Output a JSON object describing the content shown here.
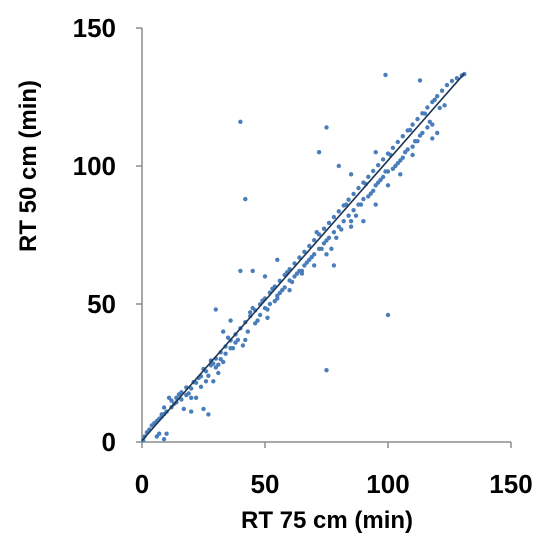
{
  "chart_data": {
    "type": "scatter",
    "title": "",
    "xlabel": "RT 75 cm (min)",
    "ylabel": "RT 50 cm (min)",
    "xlim": [
      0,
      150
    ],
    "ylim": [
      0,
      150
    ],
    "x_ticks": [
      "0",
      "50",
      "100",
      "150"
    ],
    "y_ticks": [
      "0",
      "50",
      "100",
      "150"
    ],
    "grid": false,
    "legend": "none",
    "colors": {
      "points": "#4a7ebb",
      "fit_line": "#1f3552",
      "axis": "#8c8c8c"
    },
    "series": [
      {
        "values": [
          [
            0.5,
            0.6
          ],
          [
            1,
            2
          ],
          [
            2,
            3.5
          ],
          [
            3,
            4.5
          ],
          [
            4,
            6
          ],
          [
            5,
            6.8
          ],
          [
            6,
            7.6
          ],
          [
            7,
            8.4
          ],
          [
            8,
            9.2
          ],
          [
            9,
            10.1
          ],
          [
            10,
            11
          ],
          [
            12,
            12.6
          ],
          [
            14,
            14.4
          ],
          [
            16,
            15.4
          ],
          [
            18,
            17
          ],
          [
            20,
            19.4
          ],
          [
            22,
            21.5
          ],
          [
            24,
            23.8
          ],
          [
            26,
            25.6
          ],
          [
            28,
            27.8
          ],
          [
            30,
            30.2
          ],
          [
            32,
            32.5
          ],
          [
            34,
            34.6
          ],
          [
            36,
            36.8
          ],
          [
            38,
            39
          ],
          [
            40,
            41.2
          ],
          [
            42,
            43.4
          ],
          [
            44,
            45.6
          ],
          [
            46,
            47.7
          ],
          [
            48,
            49.9
          ],
          [
            50,
            52
          ],
          [
            52,
            54.1
          ],
          [
            54,
            56.3
          ],
          [
            56,
            58.4
          ],
          [
            58,
            60.5
          ],
          [
            60,
            62.6
          ],
          [
            62,
            64.7
          ],
          [
            64,
            66.8
          ],
          [
            66,
            68.9
          ],
          [
            68,
            71
          ],
          [
            70,
            73.1
          ],
          [
            72,
            75.2
          ],
          [
            74,
            77.3
          ],
          [
            76,
            79.4
          ],
          [
            78,
            81.5
          ],
          [
            80,
            83.6
          ],
          [
            82,
            85.7
          ],
          [
            84,
            87.8
          ],
          [
            86,
            89.9
          ],
          [
            88,
            92
          ],
          [
            90,
            94
          ],
          [
            92,
            96.1
          ],
          [
            94,
            98.2
          ],
          [
            96,
            100.3
          ],
          [
            98,
            102.4
          ],
          [
            100,
            104.5
          ],
          [
            102,
            106.6
          ],
          [
            104,
            108.7
          ],
          [
            106,
            110.8
          ],
          [
            108,
            112.9
          ],
          [
            110,
            115
          ],
          [
            112,
            117
          ],
          [
            114,
            119.1
          ],
          [
            116,
            121.2
          ],
          [
            118,
            123.2
          ],
          [
            120,
            125.3
          ],
          [
            122,
            127.3
          ],
          [
            124,
            129.3
          ],
          [
            126,
            130.8
          ],
          [
            128,
            131.8
          ],
          [
            130,
            132.8
          ],
          [
            131,
            133.3
          ],
          [
            11,
            16
          ],
          [
            13,
            13.8
          ],
          [
            15,
            17.2
          ],
          [
            19,
            17.6
          ],
          [
            21,
            21.7
          ],
          [
            23,
            23.2
          ],
          [
            25,
            26.5
          ],
          [
            27,
            24
          ],
          [
            29,
            28.4
          ],
          [
            31,
            25
          ],
          [
            33,
            29
          ],
          [
            35,
            37.8
          ],
          [
            37,
            34
          ],
          [
            39,
            37
          ],
          [
            41,
            35
          ],
          [
            43,
            40
          ],
          [
            45,
            48.5
          ],
          [
            47,
            44
          ],
          [
            49,
            51.2
          ],
          [
            51,
            48
          ],
          [
            53,
            55.5
          ],
          [
            55,
            52
          ],
          [
            57,
            55
          ],
          [
            59,
            61.5
          ],
          [
            61,
            58
          ],
          [
            63,
            61
          ],
          [
            65,
            62
          ],
          [
            67,
            65
          ],
          [
            69,
            67
          ],
          [
            71,
            76
          ],
          [
            73,
            70
          ],
          [
            75,
            73
          ],
          [
            77,
            70
          ],
          [
            79,
            74
          ],
          [
            81,
            77
          ],
          [
            83,
            86
          ],
          [
            85,
            80
          ],
          [
            87,
            82
          ],
          [
            89,
            86
          ],
          [
            91,
            93.5
          ],
          [
            93,
            90
          ],
          [
            95,
            93
          ],
          [
            97,
            95
          ],
          [
            99,
            98
          ],
          [
            101,
            104
          ],
          [
            103,
            100
          ],
          [
            105,
            102
          ],
          [
            107,
            105
          ],
          [
            109,
            113
          ],
          [
            111,
            109
          ],
          [
            113,
            111
          ],
          [
            115,
            119
          ],
          [
            117,
            116
          ],
          [
            119,
            124
          ],
          [
            121,
            121
          ],
          [
            123,
            122
          ],
          [
            8,
            10
          ],
          [
            9,
            12.5
          ],
          [
            12,
            15
          ],
          [
            14,
            16
          ],
          [
            16,
            18
          ],
          [
            18,
            19.8
          ],
          [
            20,
            16
          ],
          [
            22,
            16
          ],
          [
            24,
            20
          ],
          [
            26,
            22
          ],
          [
            28,
            29.5
          ],
          [
            30,
            27
          ],
          [
            32,
            30
          ],
          [
            34,
            32
          ],
          [
            36,
            34
          ],
          [
            38,
            36
          ],
          [
            44,
            47
          ],
          [
            46,
            43
          ],
          [
            48,
            46
          ],
          [
            50,
            48.5
          ],
          [
            52,
            50
          ],
          [
            54,
            51
          ],
          [
            56,
            54
          ],
          [
            58,
            56
          ],
          [
            60,
            58.5
          ],
          [
            62,
            60
          ],
          [
            64,
            62
          ],
          [
            66,
            64
          ],
          [
            68,
            66
          ],
          [
            70,
            68
          ],
          [
            72,
            70
          ],
          [
            74,
            72
          ],
          [
            76,
            74
          ],
          [
            78,
            76
          ],
          [
            80,
            78
          ],
          [
            82,
            80
          ],
          [
            84,
            82
          ],
          [
            86,
            84
          ],
          [
            88,
            86
          ],
          [
            90,
            88
          ],
          [
            92,
            89
          ],
          [
            94,
            91
          ],
          [
            96,
            94
          ],
          [
            98,
            96
          ],
          [
            100,
            98
          ],
          [
            102,
            99
          ],
          [
            104,
            101
          ],
          [
            106,
            103
          ],
          [
            108,
            106
          ],
          [
            110,
            107
          ],
          [
            112,
            109
          ],
          [
            114,
            112
          ],
          [
            116,
            114
          ],
          [
            118,
            115
          ],
          [
            6,
            2
          ],
          [
            7,
            3
          ],
          [
            9,
            1
          ],
          [
            10,
            3
          ],
          [
            17,
            12
          ],
          [
            20,
            11
          ],
          [
            25,
            12
          ],
          [
            27,
            10
          ],
          [
            29,
            22
          ],
          [
            31,
            28
          ],
          [
            42,
            37
          ],
          [
            51,
            45
          ],
          [
            55,
            53
          ],
          [
            60,
            55
          ],
          [
            65,
            61
          ],
          [
            70,
            64
          ],
          [
            75,
            68
          ],
          [
            78,
            64
          ],
          [
            85,
            78
          ],
          [
            90,
            80
          ],
          [
            95,
            86
          ],
          [
            100,
            93
          ],
          [
            105,
            97
          ],
          [
            110,
            104
          ],
          [
            118,
            110
          ],
          [
            120,
            112
          ],
          [
            75,
            114
          ],
          [
            72,
            105
          ],
          [
            40,
            116
          ],
          [
            42,
            88
          ],
          [
            75,
            26
          ],
          [
            100,
            46
          ],
          [
            99,
            133
          ],
          [
            113,
            131
          ],
          [
            40,
            62
          ],
          [
            30,
            48
          ],
          [
            45,
            62
          ],
          [
            80,
            100
          ],
          [
            33,
            40
          ],
          [
            36,
            44
          ],
          [
            50,
            60
          ],
          [
            55,
            66
          ],
          [
            85,
            97
          ],
          [
            95,
            105
          ]
        ]
      }
    ],
    "trendline": {
      "from": [
        0,
        0.5
      ],
      "to": [
        131,
        133.5
      ]
    }
  }
}
